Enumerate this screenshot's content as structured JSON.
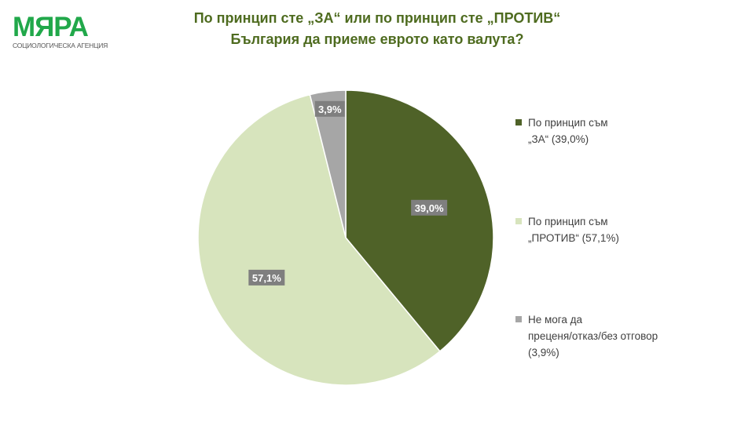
{
  "logo": {
    "word": "МЯРА",
    "subtitle": "СОЦИОЛОГИЧЕСКА АГЕНЦИЯ"
  },
  "chart_data": {
    "type": "pie",
    "title": "По принцип сте „ЗА“ или по принцип сте „ПРОТИВ“\nБългария да приеме еврото като валута?",
    "title_lines": [
      "По принцип сте „ЗА“ или по принцип сте „ПРОТИВ“",
      "България да приеме еврото като валута?"
    ],
    "start": "top",
    "direction": "clockwise",
    "legend_position": "right",
    "slices": [
      {
        "name": "По принцип съм\n„ЗА“ (39,0%)",
        "value": 39.0,
        "label": "39,0%",
        "color": "#4f6228"
      },
      {
        "name": "По принцип съм\n„ПРОТИВ“ (57,1%)",
        "value": 57.1,
        "label": "57,1%",
        "color": "#d7e4bd"
      },
      {
        "name": "Не мога да\nпреценя/отказ/без отговор\n(3,9%)",
        "value": 3.9,
        "label": "3,9%",
        "color": "#a6a6a6"
      }
    ]
  }
}
